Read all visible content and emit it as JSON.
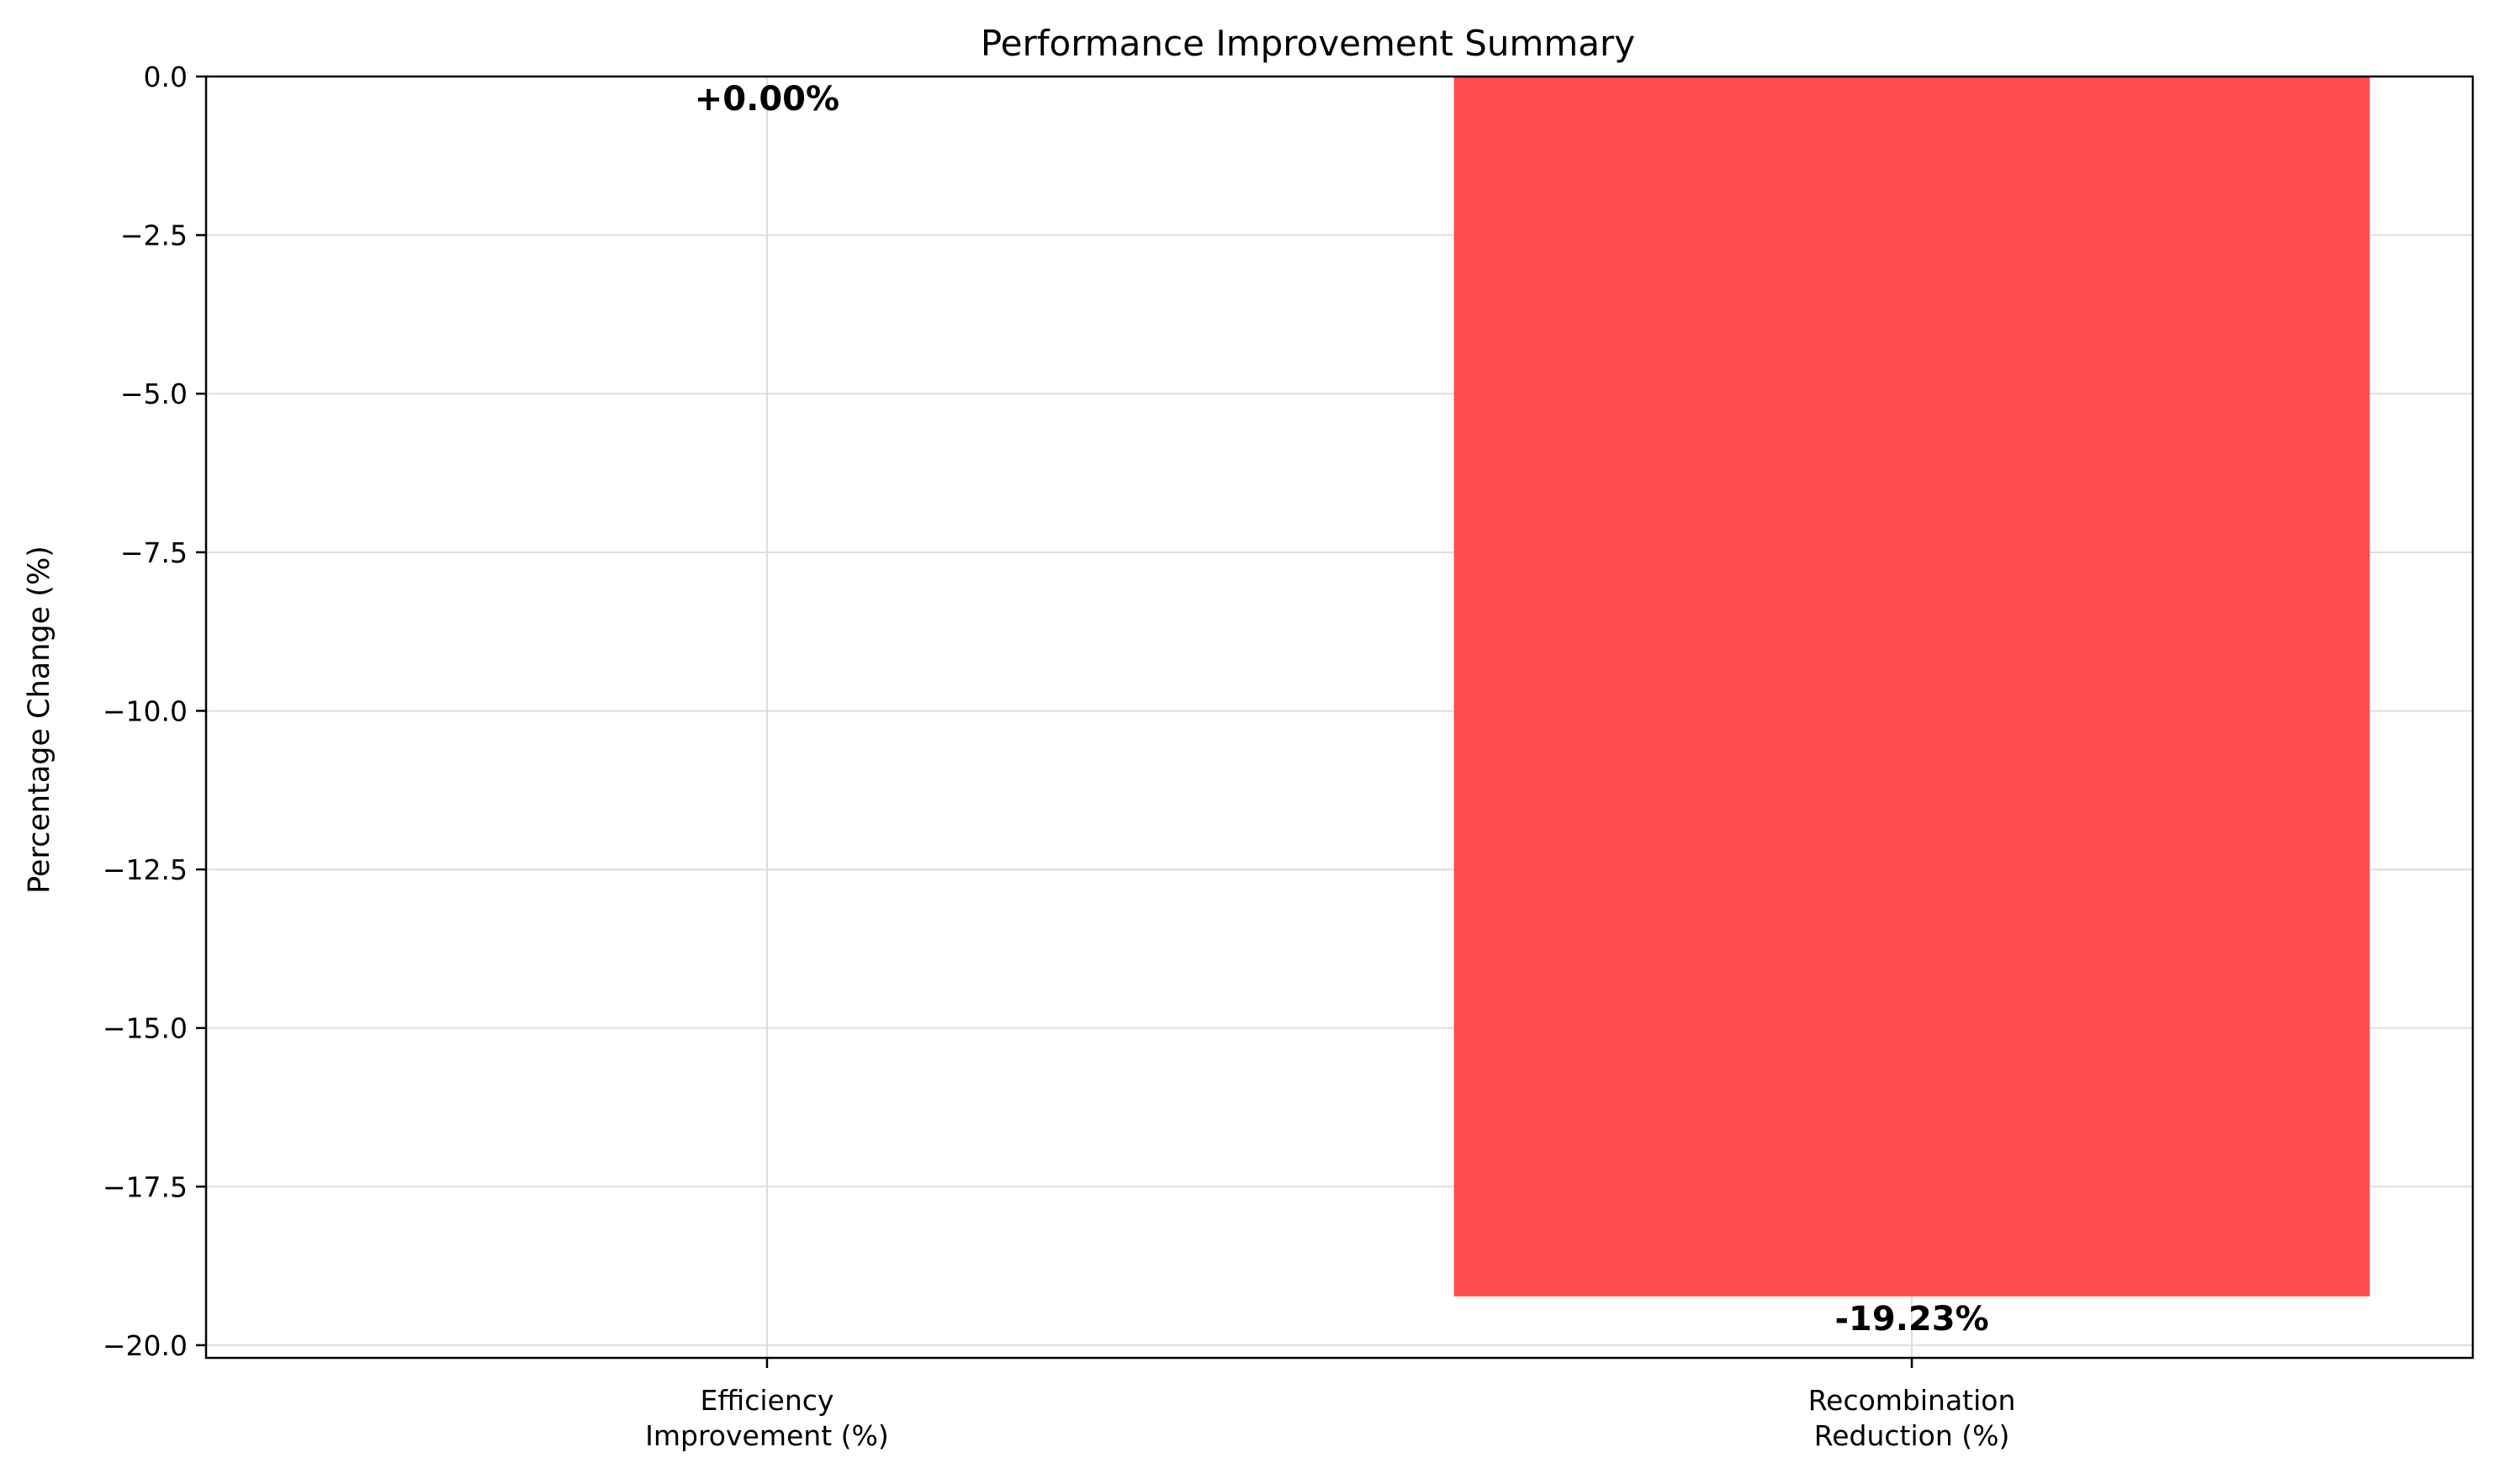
{
  "chart_data": {
    "type": "bar",
    "title": "Performance Improvement Summary",
    "xlabel": "",
    "ylabel": "Percentage Change (%)",
    "categories": [
      [
        "Efficiency",
        "Improvement (%)"
      ],
      [
        "Recombination",
        "Reduction (%)"
      ]
    ],
    "values": [
      0.0,
      -19.23
    ],
    "data_labels": [
      "+0.00%",
      "-19.23%"
    ],
    "ylim": [
      -20.2,
      0.0
    ],
    "yticks": [
      0.0,
      -2.5,
      -5.0,
      -7.5,
      -10.0,
      -12.5,
      -15.0,
      -17.5,
      -20.0
    ],
    "ytick_labels": [
      "0.0",
      "−2.5",
      "−5.0",
      "−7.5",
      "−10.0",
      "−12.5",
      "−15.0",
      "−17.5",
      "−20.0"
    ],
    "grid": true,
    "colors": [
      "#2ca02c",
      "#ff4d4d"
    ]
  }
}
